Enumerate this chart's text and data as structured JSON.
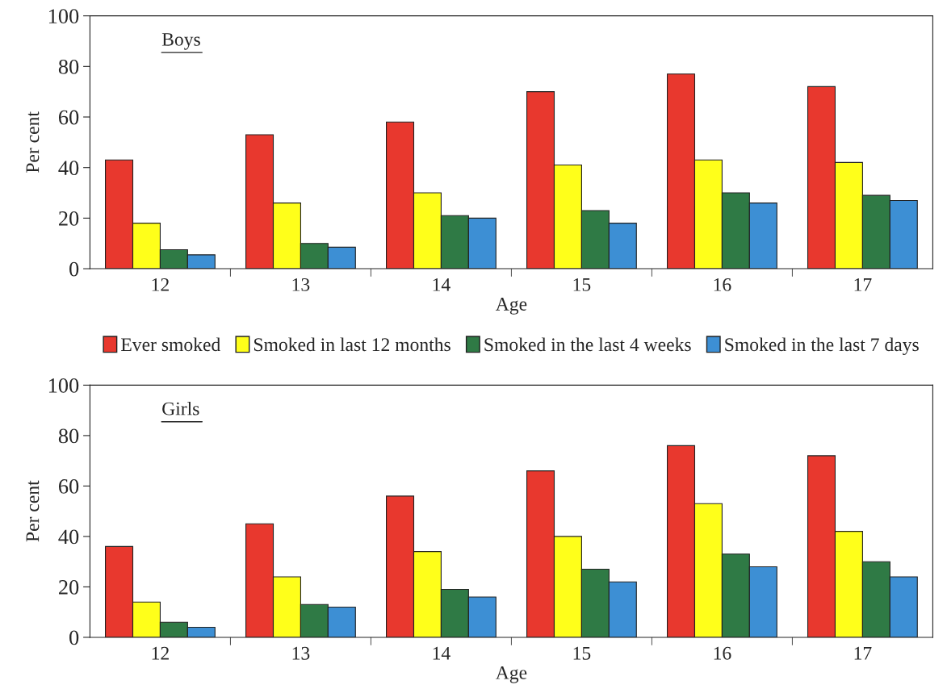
{
  "chart_data": [
    {
      "type": "bar",
      "title": "Boys",
      "xlabel": "Age",
      "ylabel": "Per cent",
      "categories": [
        "12",
        "13",
        "14",
        "15",
        "16",
        "17"
      ],
      "ylim": [
        0,
        100
      ],
      "yticks": [
        0,
        20,
        40,
        60,
        80,
        100
      ],
      "legend": "bottom",
      "series": [
        {
          "name": "Ever smoked",
          "color": "#e8382e",
          "values": [
            43,
            53,
            58,
            70,
            77,
            72
          ]
        },
        {
          "name": "Smoked in last 12 months",
          "color": "#ffff1a",
          "values": [
            18,
            26,
            30,
            41,
            43,
            42
          ]
        },
        {
          "name": "Smoked in the last 4 weeks",
          "color": "#2f7a45",
          "values": [
            7.5,
            10,
            21,
            23,
            30,
            29
          ]
        },
        {
          "name": "Smoked in the last 7 days",
          "color": "#3d8fd4",
          "values": [
            5.5,
            8.5,
            20,
            18,
            26,
            27
          ]
        }
      ]
    },
    {
      "type": "bar",
      "title": "Girls",
      "xlabel": "Age",
      "ylabel": "Per cent",
      "categories": [
        "12",
        "13",
        "14",
        "15",
        "16",
        "17"
      ],
      "ylim": [
        0,
        100
      ],
      "yticks": [
        0,
        20,
        40,
        60,
        80,
        100
      ],
      "series": [
        {
          "color": "#e8382e",
          "values": [
            36,
            45,
            56,
            66,
            76,
            72
          ]
        },
        {
          "color": "#ffff1a",
          "values": [
            14,
            24,
            34,
            40,
            53,
            42
          ]
        },
        {
          "color": "#2f7a45",
          "values": [
            6,
            13,
            19,
            27,
            33,
            30
          ]
        },
        {
          "color": "#3d8fd4",
          "values": [
            4,
            12,
            16,
            22,
            28,
            24
          ]
        }
      ]
    }
  ]
}
